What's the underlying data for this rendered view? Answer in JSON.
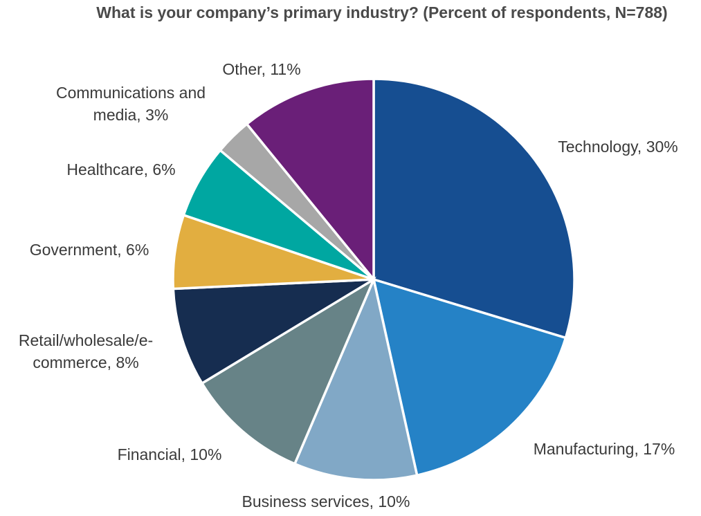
{
  "chart_data": {
    "type": "pie",
    "title": "What is your company’s primary industry? (Percent of respondents, N=788)",
    "slices": [
      {
        "label_lines": [
          "Technology, 30%"
        ],
        "value": 30,
        "color": "#164e91"
      },
      {
        "label_lines": [
          "Manufacturing, 17%"
        ],
        "value": 17,
        "color": "#2582c6"
      },
      {
        "label_lines": [
          "Business services, 10%"
        ],
        "value": 10,
        "color": "#81a8c6"
      },
      {
        "label_lines": [
          "Financial, 10%"
        ],
        "value": 10,
        "color": "#678387"
      },
      {
        "label_lines": [
          "Retail/wholesale/e-",
          "commerce, 8%"
        ],
        "value": 8,
        "color": "#162d50"
      },
      {
        "label_lines": [
          "Government, 6%"
        ],
        "value": 6,
        "color": "#e2ae40"
      },
      {
        "label_lines": [
          "Healthcare, 6%"
        ],
        "value": 6,
        "color": "#00a7a1"
      },
      {
        "label_lines": [
          "Communications and",
          "media, 3%"
        ],
        "value": 3,
        "color": "#a7a7a7"
      },
      {
        "label_lines": [
          "Other, 11%"
        ],
        "value": 11,
        "color": "#6a1f78"
      }
    ]
  }
}
